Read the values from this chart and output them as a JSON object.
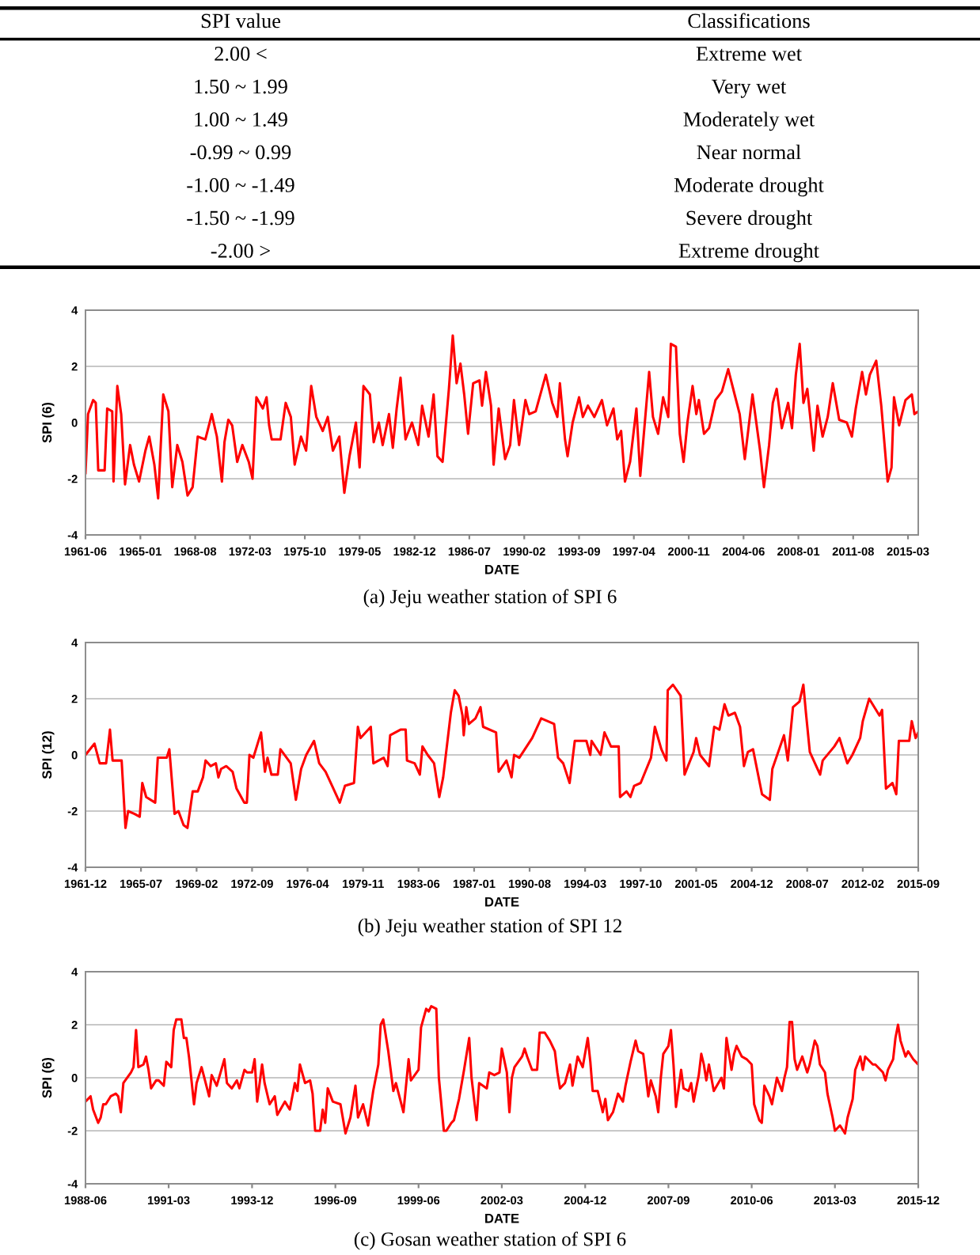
{
  "chart_data": [
    {
      "type": "other",
      "annotations": [
        "SPI value",
        "Classifications",
        "2.00 <",
        "Extreme wet",
        "1.50 ~ 1.99",
        "Very wet",
        "1.00 ~ 1.49",
        "Moderately wet",
        "-0.99 ~ 0.99",
        "Near normal",
        "-1.00 ~ -1.49",
        "Moderate drought",
        "-1.50 ~ -1.99",
        "Severe drought",
        "-2.00 >",
        "Extreme drought"
      ]
    },
    {
      "type": "line",
      "xlabel": "DATE",
      "ylabel": "SPI (6)",
      "annotations": [
        "(a) Jeju weather station of SPI 6"
      ],
      "grid": "y",
      "xlim": [
        "1961-06",
        "2015-11"
      ],
      "xticks": [
        "1961-06",
        "1965-01",
        "1968-08",
        "1972-03",
        "1975-10",
        "1979-05",
        "1982-12",
        "1986-07",
        "1990-02",
        "1993-09",
        "1997-04",
        "2000-11",
        "2004-06",
        "2008-01",
        "2011-08",
        "2015-03"
      ],
      "ylim": [
        -4,
        4
      ],
      "yticks": [
        -4,
        -2,
        0,
        2,
        4
      ],
      "series": [
        {
          "color": "#ff0000",
          "x": [
            "1961-06",
            "1961-08",
            "1961-12",
            "1962-02",
            "1962-04",
            "1962-09",
            "1962-11",
            "1963-03",
            "1963-04",
            "1963-07",
            "1963-10",
            "1964-01",
            "1964-05",
            "1964-08",
            "1964-12",
            "1965-05",
            "1965-08",
            "1965-12",
            "1966-03",
            "1966-07",
            "1966-11",
            "1967-02",
            "1967-06",
            "1967-10",
            "1968-02",
            "1968-06",
            "1968-10",
            "1969-04",
            "1969-09",
            "1970-01",
            "1970-05",
            "1970-07",
            "1970-10",
            "1971-01",
            "1971-05",
            "1971-09",
            "1972-02",
            "1972-05",
            "1972-08",
            "1973-01",
            "1973-04",
            "1973-06",
            "1973-08",
            "1974-03",
            "1974-07",
            "1974-11",
            "1975-02",
            "1975-07",
            "1975-11",
            "1976-03",
            "1976-07",
            "1976-12",
            "1977-04",
            "1977-08",
            "1978-01",
            "1978-05",
            "1978-09",
            "1979-02",
            "1979-05",
            "1979-08",
            "1980-01",
            "1980-04",
            "1980-08",
            "1980-11",
            "1981-04",
            "1981-07",
            "1981-10",
            "1982-01",
            "1982-05",
            "1982-10",
            "1983-03",
            "1983-06",
            "1983-11",
            "1984-03",
            "1984-06",
            "1984-10",
            "1985-03",
            "1985-06",
            "1985-09",
            "1985-12",
            "1986-03",
            "1986-06",
            "1986-10",
            "1987-03",
            "1987-05",
            "1987-08",
            "1987-12",
            "1988-02",
            "1988-06",
            "1988-11",
            "1989-03",
            "1989-06",
            "1989-10",
            "1990-03",
            "1990-06",
            "1990-11",
            "1991-07",
            "1991-12",
            "1992-04",
            "1992-06",
            "1992-10",
            "1992-12",
            "1993-04",
            "1993-09",
            "1993-12",
            "1994-04",
            "1994-09",
            "1995-03",
            "1995-07",
            "1995-12",
            "1996-03",
            "1996-06",
            "1996-09",
            "1997-01",
            "1997-06",
            "1997-09",
            "1998-04",
            "1998-07",
            "1998-11",
            "1999-03",
            "1999-07",
            "1999-09",
            "2000-01",
            "2000-04",
            "2000-07",
            "2000-10",
            "2001-02",
            "2001-05",
            "2001-07",
            "2001-11",
            "2002-03",
            "2002-08",
            "2003-01",
            "2003-06",
            "2003-11",
            "2004-03",
            "2004-07",
            "2005-01",
            "2005-07",
            "2005-10",
            "2006-02",
            "2006-05",
            "2006-08",
            "2006-12",
            "2007-05",
            "2007-08",
            "2007-11",
            "2008-02",
            "2008-05",
            "2008-08",
            "2009-01",
            "2009-04",
            "2009-08",
            "2009-12",
            "2010-04",
            "2010-09",
            "2011-03",
            "2011-07",
            "2011-10",
            "2012-03",
            "2012-06",
            "2012-09",
            "2013-02",
            "2013-06",
            "2013-11",
            "2014-02",
            "2014-04",
            "2014-08",
            "2015-01",
            "2015-06",
            "2015-08",
            "2015-11"
          ],
          "values": [
            -1.8,
            0.3,
            0.8,
            0.7,
            -1.7,
            -1.7,
            0.5,
            0.4,
            -2.1,
            1.3,
            0.3,
            -2.2,
            -0.8,
            -1.5,
            -2.1,
            -1.0,
            -0.5,
            -1.5,
            -2.7,
            1.0,
            0.4,
            -2.3,
            -0.8,
            -1.4,
            -2.6,
            -2.3,
            -0.5,
            -0.6,
            0.3,
            -0.5,
            -2.1,
            -0.7,
            0.1,
            -0.1,
            -1.4,
            -0.8,
            -1.4,
            -2.0,
            0.9,
            0.5,
            0.9,
            -0.1,
            -0.6,
            -0.6,
            0.7,
            0.2,
            -1.5,
            -0.5,
            -1.0,
            1.3,
            0.2,
            -0.3,
            0.2,
            -1.0,
            -0.5,
            -2.5,
            -1.2,
            0.0,
            -1.6,
            1.3,
            1.0,
            -0.7,
            0.0,
            -0.8,
            0.3,
            -0.9,
            0.5,
            1.6,
            -0.6,
            0.0,
            -0.8,
            0.6,
            -0.5,
            1.0,
            -1.2,
            -1.4,
            1.2,
            3.1,
            1.4,
            2.1,
            1.0,
            -0.4,
            1.4,
            1.5,
            0.6,
            1.8,
            0.6,
            -1.5,
            0.5,
            -1.3,
            -0.8,
            0.8,
            -0.8,
            0.8,
            0.3,
            0.4,
            1.7,
            0.7,
            0.2,
            1.4,
            -0.6,
            -1.2,
            0.0,
            0.9,
            0.2,
            0.6,
            0.2,
            0.8,
            -0.1,
            0.5,
            -0.6,
            -0.3,
            -2.1,
            -1.4,
            0.5,
            -1.9,
            1.8,
            0.2,
            -0.4,
            0.9,
            0.2,
            2.8,
            2.7,
            -0.4,
            -1.4,
            0.0,
            1.3,
            0.3,
            0.8,
            -0.4,
            -0.2,
            0.8,
            1.1,
            1.9,
            1.0,
            0.3,
            -1.3,
            1.0,
            -1.0,
            -2.3,
            -0.8,
            0.7,
            1.2,
            -0.2,
            0.7,
            -0.2,
            1.7,
            2.8,
            0.7,
            1.2,
            -1.0,
            0.6,
            -0.5,
            0.2,
            1.4,
            0.1,
            0.0,
            -0.5,
            0.5,
            1.8,
            1.0,
            1.7,
            2.2,
            0.6,
            -2.1,
            -1.6,
            0.9,
            -0.1,
            0.8,
            1.0,
            0.3,
            0.4
          ]
        }
      ]
    },
    {
      "type": "line",
      "xlabel": "DATE",
      "ylabel": "SPI (12)",
      "annotations": [
        "(b) Jeju weather station of SPI 12"
      ],
      "grid": "y",
      "xlim": [
        "1961-12",
        "2015-09"
      ],
      "xticks": [
        "1961-12",
        "1965-07",
        "1969-02",
        "1972-09",
        "1976-04",
        "1979-11",
        "1983-06",
        "1987-01",
        "1990-08",
        "1994-03",
        "1997-10",
        "2001-05",
        "2004-12",
        "2008-07",
        "2012-02",
        "2015-09"
      ],
      "ylim": [
        -4,
        4
      ],
      "yticks": [
        -4,
        -2,
        0,
        2,
        4
      ],
      "series": [
        {
          "color": "#ff0000",
          "x": [
            "1961-12",
            "1962-07",
            "1962-11",
            "1963-04",
            "1963-07",
            "1963-09",
            "1964-04",
            "1964-07",
            "1964-09",
            "1965-02",
            "1965-06",
            "1965-08",
            "1965-11",
            "1966-06",
            "1966-08",
            "1967-03",
            "1967-05",
            "1967-09",
            "1967-12",
            "1968-04",
            "1968-07",
            "1968-11",
            "1969-03",
            "1969-07",
            "1969-09",
            "1970-01",
            "1970-05",
            "1970-07",
            "1970-09",
            "1971-01",
            "1971-06",
            "1971-09",
            "1972-03",
            "1972-05",
            "1972-07",
            "1972-10",
            "1973-04",
            "1973-07",
            "1973-09",
            "1973-12",
            "1974-05",
            "1974-07",
            "1975-03",
            "1975-07",
            "1975-11",
            "1976-03",
            "1976-09",
            "1977-01",
            "1977-06",
            "1977-11",
            "1978-05",
            "1978-09",
            "1979-04",
            "1979-07",
            "1979-09",
            "1980-05",
            "1980-07",
            "1981-03",
            "1981-06",
            "1981-08",
            "1982-04",
            "1982-08",
            "1982-09",
            "1983-03",
            "1983-07",
            "1983-09",
            "1984-01",
            "1984-06",
            "1984-10",
            "1985-01",
            "1985-07",
            "1985-10",
            "1986-01",
            "1986-04",
            "1986-05",
            "1986-07",
            "1986-09",
            "1987-02",
            "1987-06",
            "1987-08",
            "1988-06",
            "1988-08",
            "1989-02",
            "1989-06",
            "1989-08",
            "1989-12",
            "1990-10",
            "1991-05",
            "1992-03",
            "1992-06",
            "1992-10",
            "1993-03",
            "1993-07",
            "1994-04",
            "1994-07",
            "1994-08",
            "1995-03",
            "1995-06",
            "1995-11",
            "1996-05",
            "1996-06",
            "1996-11",
            "1997-02",
            "1997-05",
            "1997-10",
            "1998-06",
            "1998-09",
            "1999-02",
            "1999-06",
            "1999-07",
            "1999-11",
            "2000-05",
            "2000-08",
            "2001-03",
            "2001-05",
            "2001-08",
            "2002-03",
            "2002-07",
            "2002-11",
            "2003-03",
            "2003-06",
            "2003-11",
            "2004-03",
            "2004-06",
            "2004-09",
            "2005-01",
            "2005-08",
            "2006-02",
            "2006-04",
            "2007-01",
            "2007-04",
            "2007-08",
            "2008-01",
            "2008-04",
            "2008-06",
            "2008-09",
            "2009-05",
            "2009-07",
            "2010-04",
            "2010-08",
            "2011-02",
            "2011-06",
            "2011-12",
            "2012-02",
            "2012-07",
            "2013-03",
            "2013-05",
            "2013-08",
            "2014-01",
            "2014-04",
            "2014-06",
            "2015-02",
            "2015-04",
            "2015-07",
            "2015-09"
          ],
          "values": [
            0.0,
            0.4,
            -0.3,
            -0.3,
            0.9,
            -0.2,
            -0.2,
            -2.6,
            -2.0,
            -2.1,
            -2.2,
            -1.0,
            -1.5,
            -1.7,
            -0.1,
            -0.1,
            0.2,
            -2.1,
            -2.0,
            -2.5,
            -2.6,
            -1.3,
            -1.3,
            -0.8,
            -0.2,
            -0.4,
            -0.3,
            -0.8,
            -0.5,
            -0.4,
            -0.6,
            -1.2,
            -1.7,
            -1.7,
            0.0,
            -0.1,
            0.8,
            -0.6,
            -0.1,
            -0.7,
            -0.7,
            0.2,
            -0.3,
            -1.6,
            -0.5,
            0.0,
            0.5,
            -0.3,
            -0.6,
            -1.1,
            -1.7,
            -1.1,
            -1.0,
            1.0,
            0.6,
            1.0,
            -0.3,
            -0.1,
            -0.4,
            0.7,
            0.9,
            0.9,
            -0.2,
            -0.3,
            -0.7,
            0.3,
            0.0,
            -0.3,
            -1.5,
            -0.8,
            1.5,
            2.3,
            2.1,
            1.4,
            0.7,
            1.7,
            1.1,
            1.3,
            1.7,
            1.0,
            0.8,
            -0.6,
            -0.2,
            -0.8,
            0.0,
            -0.1,
            0.6,
            1.3,
            1.1,
            -0.1,
            -0.3,
            -1.0,
            0.5,
            0.5,
            0.0,
            0.5,
            0.0,
            0.8,
            0.3,
            0.3,
            -1.5,
            -1.3,
            -1.5,
            -1.1,
            -1.0,
            -0.1,
            1.0,
            0.2,
            -0.2,
            2.3,
            2.5,
            2.1,
            -0.7,
            0.1,
            0.6,
            0.0,
            -0.4,
            1.0,
            0.9,
            1.8,
            1.4,
            1.5,
            1.0,
            -0.4,
            0.1,
            0.2,
            -1.4,
            -1.6,
            -0.5,
            0.7,
            -0.2,
            1.7,
            1.9,
            2.5,
            1.5,
            0.1,
            -0.7,
            -0.2,
            0.3,
            0.6,
            -0.3,
            0.0,
            0.6,
            1.2,
            2.0,
            1.4,
            1.6,
            -1.2,
            -1.0,
            -1.4,
            0.5,
            0.5,
            1.2,
            0.6,
            0.8
          ]
        }
      ]
    },
    {
      "type": "line",
      "xlabel": "DATE",
      "ylabel": "SPI (6)",
      "annotations": [
        "(c) Gosan weather station of SPI 6"
      ],
      "grid": "y",
      "xlim": [
        "1988-06",
        "2015-12"
      ],
      "xticks": [
        "1988-06",
        "1991-03",
        "1993-12",
        "1996-09",
        "1999-06",
        "2002-03",
        "2004-12",
        "2007-09",
        "2010-06",
        "2013-03",
        "2015-12"
      ],
      "ylim": [
        -4,
        4
      ],
      "yticks": [
        -4,
        -2,
        0,
        2,
        4
      ],
      "series": [
        {
          "color": "#ff0000",
          "x": [
            "1988-06",
            "1988-08",
            "1988-09",
            "1988-11",
            "1988-12",
            "1989-01",
            "1989-02",
            "1989-04",
            "1989-06",
            "1989-07",
            "1989-08",
            "1989-09",
            "1989-12",
            "1990-01",
            "1990-02",
            "1990-03",
            "1990-05",
            "1990-06",
            "1990-07",
            "1990-08",
            "1990-10",
            "1990-11",
            "1991-01",
            "1991-02",
            "1991-04",
            "1991-05",
            "1991-06",
            "1991-08",
            "1991-09",
            "1991-10",
            "1991-11",
            "1992-01",
            "1992-02",
            "1992-04",
            "1992-07",
            "1992-08",
            "1992-10",
            "1993-01",
            "1993-02",
            "1993-04",
            "1993-06",
            "1993-07",
            "1993-09",
            "1993-10",
            "1993-12",
            "1994-01",
            "1994-02",
            "1994-04",
            "1994-05",
            "1994-07",
            "1994-09",
            "1994-10",
            "1995-01",
            "1995-03",
            "1995-05",
            "1995-06",
            "1995-07",
            "1995-09",
            "1995-11",
            "1995-12",
            "1996-01",
            "1996-03",
            "1996-04",
            "1996-05",
            "1996-06",
            "1996-08",
            "1996-11",
            "1997-01",
            "1997-03",
            "1997-05",
            "1997-06",
            "1997-08",
            "1997-10",
            "1997-12",
            "1998-02",
            "1998-03",
            "1998-04",
            "1998-06",
            "1998-08",
            "1998-09",
            "1998-12",
            "1999-02",
            "1999-03",
            "1999-06",
            "1999-07",
            "1999-09",
            "1999-10",
            "1999-11",
            "2000-01",
            "2000-02",
            "2000-04",
            "2000-05",
            "2000-07",
            "2000-08",
            "2000-10",
            "2000-12",
            "2001-02",
            "2001-03",
            "2001-05",
            "2001-06",
            "2001-09",
            "2001-10",
            "2001-12",
            "2002-02",
            "2002-03",
            "2002-05",
            "2002-06",
            "2002-07",
            "2002-08",
            "2002-11",
            "2002-12",
            "2003-01",
            "2003-03",
            "2003-05",
            "2003-06",
            "2003-08",
            "2003-10",
            "2003-12",
            "2004-01",
            "2004-02",
            "2004-04",
            "2004-06",
            "2004-07",
            "2004-09",
            "2004-11",
            "2005-01",
            "2005-02",
            "2005-03",
            "2005-05",
            "2005-07",
            "2005-08",
            "2005-09",
            "2005-11",
            "2006-01",
            "2006-03",
            "2006-04",
            "2006-06",
            "2006-08",
            "2006-09",
            "2006-11",
            "2007-01",
            "2007-02",
            "2007-04",
            "2007-05",
            "2007-06",
            "2007-07",
            "2007-09",
            "2007-10",
            "2007-11",
            "2007-12",
            "2008-02",
            "2008-03",
            "2008-05",
            "2008-06",
            "2008-07",
            "2008-09",
            "2008-10",
            "2008-11",
            "2008-12",
            "2009-01",
            "2009-03",
            "2009-06",
            "2009-07",
            "2009-08",
            "2009-10",
            "2009-11",
            "2009-12",
            "2010-02",
            "2010-04",
            "2010-06",
            "2010-07",
            "2010-09",
            "2010-10",
            "2010-11",
            "2011-01",
            "2011-02",
            "2011-04",
            "2011-06",
            "2011-07",
            "2011-08",
            "2011-09",
            "2011-10",
            "2011-11",
            "2011-12",
            "2012-02",
            "2012-04",
            "2012-05",
            "2012-07",
            "2012-08",
            "2012-09",
            "2012-11",
            "2012-12",
            "2013-02",
            "2013-03",
            "2013-05",
            "2013-07",
            "2013-08",
            "2013-10",
            "2013-11",
            "2014-01",
            "2014-02",
            "2014-03",
            "2014-06",
            "2014-07",
            "2014-10",
            "2014-11",
            "2014-12",
            "2015-02",
            "2015-03",
            "2015-04",
            "2015-05",
            "2015-07",
            "2015-08",
            "2015-10",
            "2015-12"
          ],
          "values": [
            -0.9,
            -0.7,
            -1.2,
            -1.7,
            -1.5,
            -1.0,
            -1.0,
            -0.7,
            -0.6,
            -0.7,
            -1.3,
            -0.2,
            0.2,
            0.4,
            1.8,
            0.4,
            0.5,
            0.8,
            0.3,
            -0.4,
            -0.1,
            -0.1,
            -0.3,
            0.6,
            0.4,
            1.8,
            2.2,
            2.2,
            1.5,
            1.5,
            0.8,
            -1.0,
            -0.2,
            0.4,
            -0.7,
            0.1,
            -0.3,
            0.7,
            -0.2,
            -0.4,
            -0.1,
            -0.4,
            0.3,
            0.2,
            0.2,
            0.7,
            -0.9,
            0.5,
            -0.2,
            -1.0,
            -0.7,
            -1.4,
            -0.9,
            -1.2,
            -0.2,
            -0.5,
            0.5,
            -0.2,
            -0.1,
            -0.6,
            -2.0,
            -2.0,
            -1.2,
            -1.7,
            -0.4,
            -0.9,
            -1.0,
            -2.1,
            -1.5,
            -0.3,
            -1.5,
            -1.0,
            -1.8,
            -0.5,
            0.5,
            2.0,
            2.2,
            1.0,
            -0.5,
            -0.2,
            -1.3,
            0.7,
            -0.1,
            0.3,
            1.9,
            2.6,
            2.5,
            2.7,
            2.6,
            0.0,
            -2.0,
            -2.0,
            -1.7,
            -1.6,
            -0.8,
            0.3,
            1.5,
            0.0,
            -1.6,
            -0.2,
            -0.4,
            0.2,
            0.1,
            0.2,
            1.1,
            0.2,
            -1.3,
            0.0,
            0.4,
            0.8,
            1.1,
            0.8,
            0.3,
            0.3,
            1.7,
            1.7,
            1.4,
            1.0,
            0.2,
            -0.4,
            -0.2,
            0.5,
            -0.3,
            0.8,
            0.4,
            1.5,
            0.6,
            -0.5,
            -0.5,
            -1.3,
            -0.8,
            -1.6,
            -1.3,
            -0.6,
            -0.9,
            -0.3,
            0.6,
            1.4,
            1.0,
            0.9,
            -0.7,
            -0.1,
            -0.7,
            -1.3,
            0.0,
            0.9,
            1.2,
            1.8,
            0.5,
            -1.1,
            0.3,
            -0.4,
            -0.5,
            -0.2,
            -0.9,
            0.1,
            0.9,
            0.5,
            -0.1,
            0.5,
            -0.5,
            0.0,
            -0.4,
            1.5,
            0.3,
            0.9,
            1.2,
            0.8,
            0.7,
            0.5,
            -1.0,
            -1.6,
            -1.7,
            -0.3,
            -0.7,
            -1.0,
            0.0,
            -0.5,
            0.0,
            0.4,
            2.1,
            2.1,
            0.7,
            0.3,
            0.8,
            0.2,
            0.5,
            1.4,
            1.2,
            0.5,
            0.2,
            -0.6,
            -1.5,
            -2.0,
            -1.8,
            -2.1,
            -1.5,
            -0.8,
            0.3,
            0.8,
            0.3,
            0.8,
            0.5,
            0.5,
            0.2,
            -0.1,
            0.3,
            0.7,
            1.5,
            2.0,
            1.4,
            0.8,
            1.0,
            0.7,
            0.5
          ]
        }
      ]
    }
  ]
}
